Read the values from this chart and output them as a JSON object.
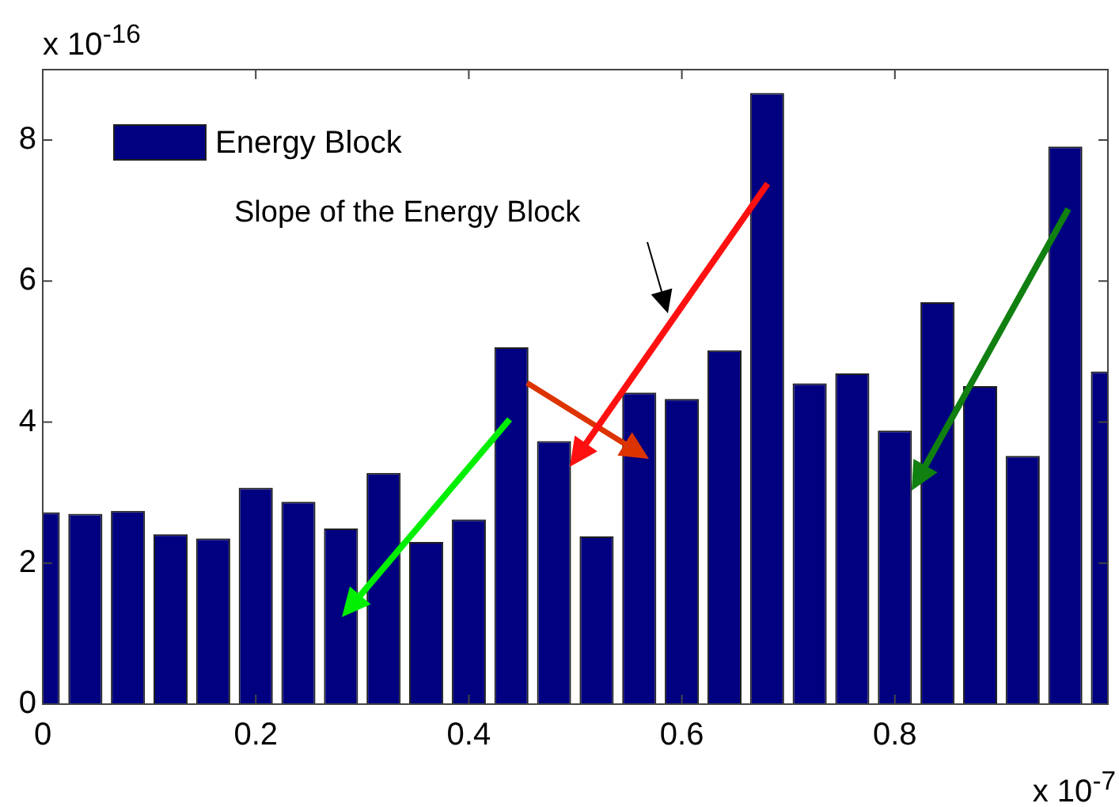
{
  "chart_data": {
    "type": "bar",
    "ylabel": "x 10$^{-16}$",
    "xlabel": "x 10$^{-7}$",
    "x": [
      0,
      0.04,
      0.08,
      0.12,
      0.16,
      0.2,
      0.24,
      0.28,
      0.32,
      0.36,
      0.4,
      0.44,
      0.48,
      0.52,
      0.56,
      0.6,
      0.64,
      0.68,
      0.72,
      0.76,
      0.8,
      0.84,
      0.88,
      0.92,
      0.96,
      1.0
    ],
    "series": [
      {
        "name": "Energy Block",
        "color": "#000080",
        "values": [
          2.72,
          2.7,
          2.74,
          2.41,
          2.35,
          3.07,
          2.87,
          2.49,
          3.28,
          2.3,
          2.62,
          5.06,
          3.73,
          2.38,
          4.42,
          4.33,
          5.02,
          8.67,
          4.55,
          4.69,
          3.88,
          5.7,
          4.51,
          3.52,
          7.91,
          4.72
        ]
      }
    ],
    "xlim": [
      0,
      1
    ],
    "xticks": [
      0,
      0.2,
      0.4,
      0.6,
      0.8
    ],
    "ylim": [
      0,
      9
    ],
    "yticks": [
      0,
      2,
      4,
      6,
      8
    ],
    "annotations": [
      "Slope of the Energy Block"
    ],
    "legend": "top left",
    "grid": false
  }
}
